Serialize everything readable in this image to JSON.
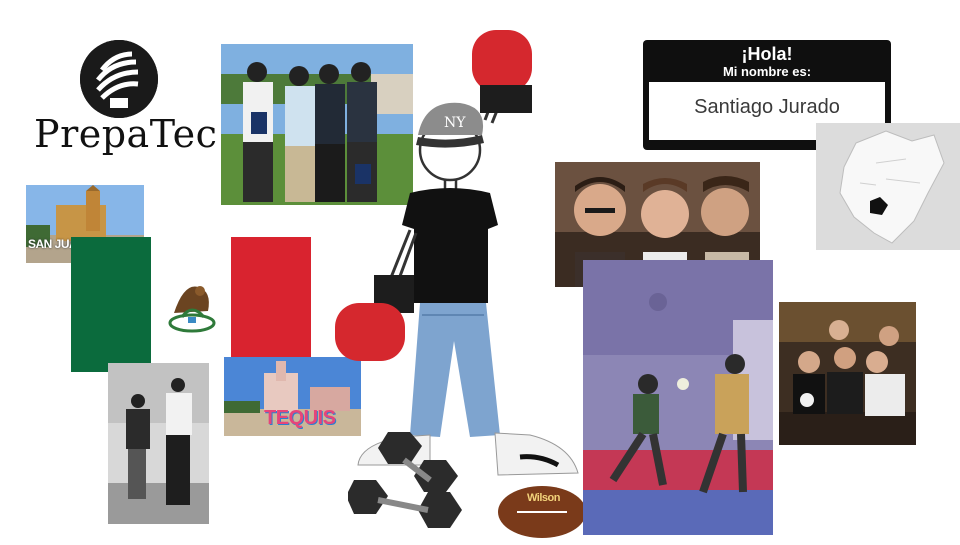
{
  "logo": {
    "text": "PrepaTec",
    "icon": "torch-logo-icon"
  },
  "name_tag": {
    "greeting": "¡Hola!",
    "subtitle": "Mi nombre es:",
    "name": "Santiago Jurado"
  },
  "sign_san_juan": "SAN JUAN DEL RIO",
  "sign_tequis": "TEQUIS",
  "football_brand": "Wilson",
  "colors": {
    "flag_green": "#0b6b3d",
    "flag_red": "#d9232f",
    "tag_black": "#0f0f0f"
  }
}
